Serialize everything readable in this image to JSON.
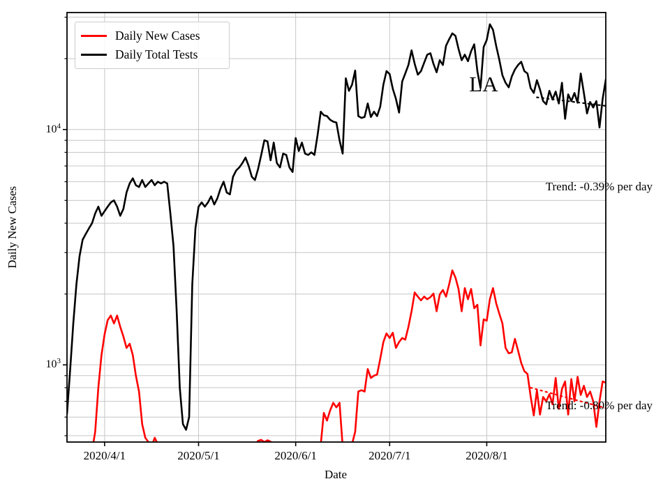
{
  "chart_data": {
    "type": "line",
    "title": "",
    "xlabel": "Date",
    "ylabel": "Daily New Cases",
    "yscale": "log",
    "ylim": [
      470,
      31400
    ],
    "grid": true,
    "legend_position": "upper left",
    "x_start_date": "2020/3/20",
    "x_end_date": "2020/9/8",
    "x_tick_labels": [
      "2020/4/1",
      "2020/5/1",
      "2020/6/1",
      "2020/7/1",
      "2020/8/1"
    ],
    "x_tick_days": [
      12,
      42,
      73,
      103,
      134
    ],
    "y_tick_values": [
      1000,
      10000
    ],
    "y_tick_labels": [
      {
        "base": "10",
        "exp": "3"
      },
      {
        "base": "10",
        "exp": "4"
      }
    ],
    "y_gridline_values": [
      500,
      600,
      700,
      800,
      900,
      1000,
      2000,
      3000,
      4000,
      5000,
      6000,
      7000,
      8000,
      9000,
      10000,
      20000,
      30000
    ],
    "legend": [
      {
        "label": "Daily New Cases",
        "color": "#ff0000"
      },
      {
        "label": "Daily Total Tests",
        "color": "#000000"
      }
    ],
    "series": [
      {
        "name": "Daily New Cases",
        "color": "#ff0000",
        "values": [
          null,
          null,
          null,
          null,
          null,
          null,
          null,
          null,
          430,
          520,
          800,
          1100,
          1350,
          1550,
          1620,
          1500,
          1620,
          1450,
          1320,
          1180,
          1230,
          1100,
          900,
          770,
          560,
          490,
          470,
          450,
          490,
          460,
          420,
          400,
          410,
          430,
          390,
          380,
          400,
          420,
          410,
          390,
          400,
          420,
          430,
          410,
          400,
          420,
          440,
          430,
          410,
          420,
          400,
          390,
          410,
          420,
          430,
          440,
          450,
          440,
          430,
          450,
          460,
          475,
          480,
          470,
          478,
          472,
          460,
          450,
          440,
          450,
          460,
          440,
          430,
          440,
          450,
          460,
          440,
          430,
          450,
          460,
          440,
          460,
          625,
          580,
          640,
          690,
          660,
          690,
          450,
          430,
          440,
          460,
          520,
          770,
          780,
          770,
          960,
          880,
          900,
          910,
          1060,
          1250,
          1360,
          1300,
          1370,
          1180,
          1250,
          1300,
          1280,
          1450,
          1690,
          2030,
          1950,
          1880,
          1950,
          1900,
          1940,
          2010,
          1690,
          1990,
          2080,
          1950,
          2200,
          2520,
          2350,
          2100,
          1690,
          2120,
          1900,
          2100,
          1740,
          1800,
          1210,
          1560,
          1540,
          1900,
          2120,
          1830,
          1650,
          1500,
          1180,
          1120,
          1130,
          1290,
          1150,
          1020,
          940,
          915,
          735,
          610,
          780,
          615,
          730,
          700,
          750,
          680,
          880,
          650,
          790,
          850,
          615,
          870,
          700,
          890,
          745,
          815,
          730,
          770,
          700,
          545,
          700,
          850,
          840
        ]
      },
      {
        "name": "Daily Total Tests",
        "color": "#000000",
        "values": [
          620,
          950,
          1500,
          2200,
          2900,
          3400,
          3600,
          3800,
          4000,
          4400,
          4700,
          4300,
          4500,
          4700,
          4900,
          5000,
          4700,
          4300,
          4600,
          5400,
          5900,
          6200,
          5800,
          5700,
          6100,
          5700,
          5900,
          6100,
          5800,
          6000,
          5900,
          6000,
          5900,
          4400,
          3200,
          1700,
          800,
          560,
          530,
          600,
          2200,
          3800,
          4700,
          4900,
          4700,
          4900,
          5200,
          4800,
          5100,
          5600,
          6000,
          5400,
          5300,
          6300,
          6700,
          6900,
          7200,
          7600,
          7000,
          6300,
          6100,
          6800,
          7800,
          9000,
          8900,
          7400,
          8800,
          7200,
          6900,
          7900,
          7800,
          6900,
          6600,
          9200,
          8100,
          8800,
          7900,
          7800,
          8000,
          7800,
          9500,
          11900,
          11500,
          11400,
          11000,
          10800,
          10700,
          9000,
          7900,
          16500,
          14600,
          15500,
          17800,
          11400,
          11200,
          11300,
          12900,
          11300,
          11900,
          11400,
          12500,
          15500,
          17700,
          17200,
          14900,
          13500,
          11800,
          16000,
          17300,
          18800,
          21700,
          19000,
          17100,
          17700,
          19200,
          20800,
          21100,
          19000,
          17500,
          19700,
          18800,
          22700,
          24200,
          25600,
          25000,
          22000,
          19700,
          20800,
          19500,
          21500,
          23000,
          17700,
          15000,
          22400,
          24000,
          28000,
          26500,
          22700,
          19800,
          17000,
          15800,
          15100,
          16800,
          18000,
          18800,
          19400,
          17700,
          17300,
          15000,
          14300,
          16200,
          14800,
          13200,
          12800,
          14600,
          13400,
          14500,
          12900,
          15800,
          11100,
          14100,
          13200,
          14300,
          13000,
          17300,
          14300,
          11700,
          13100,
          12400,
          13200,
          10200,
          13500,
          16300
        ]
      }
    ],
    "trend_lines": [
      {
        "series": "Daily Total Tests",
        "color": "#000000",
        "label": "Trend: -0.39% per day",
        "start_day": 150,
        "end_day": 172,
        "start_value": 13700,
        "end_value": 12600
      },
      {
        "series": "Daily New Cases",
        "color": "#ff0000",
        "label": "Trend: -0.80% per day",
        "start_day": 148,
        "end_day": 172,
        "start_value": 800,
        "end_value": 655
      }
    ],
    "annotations": [
      {
        "text": "LA",
        "day": 133,
        "value": 15500
      }
    ]
  }
}
